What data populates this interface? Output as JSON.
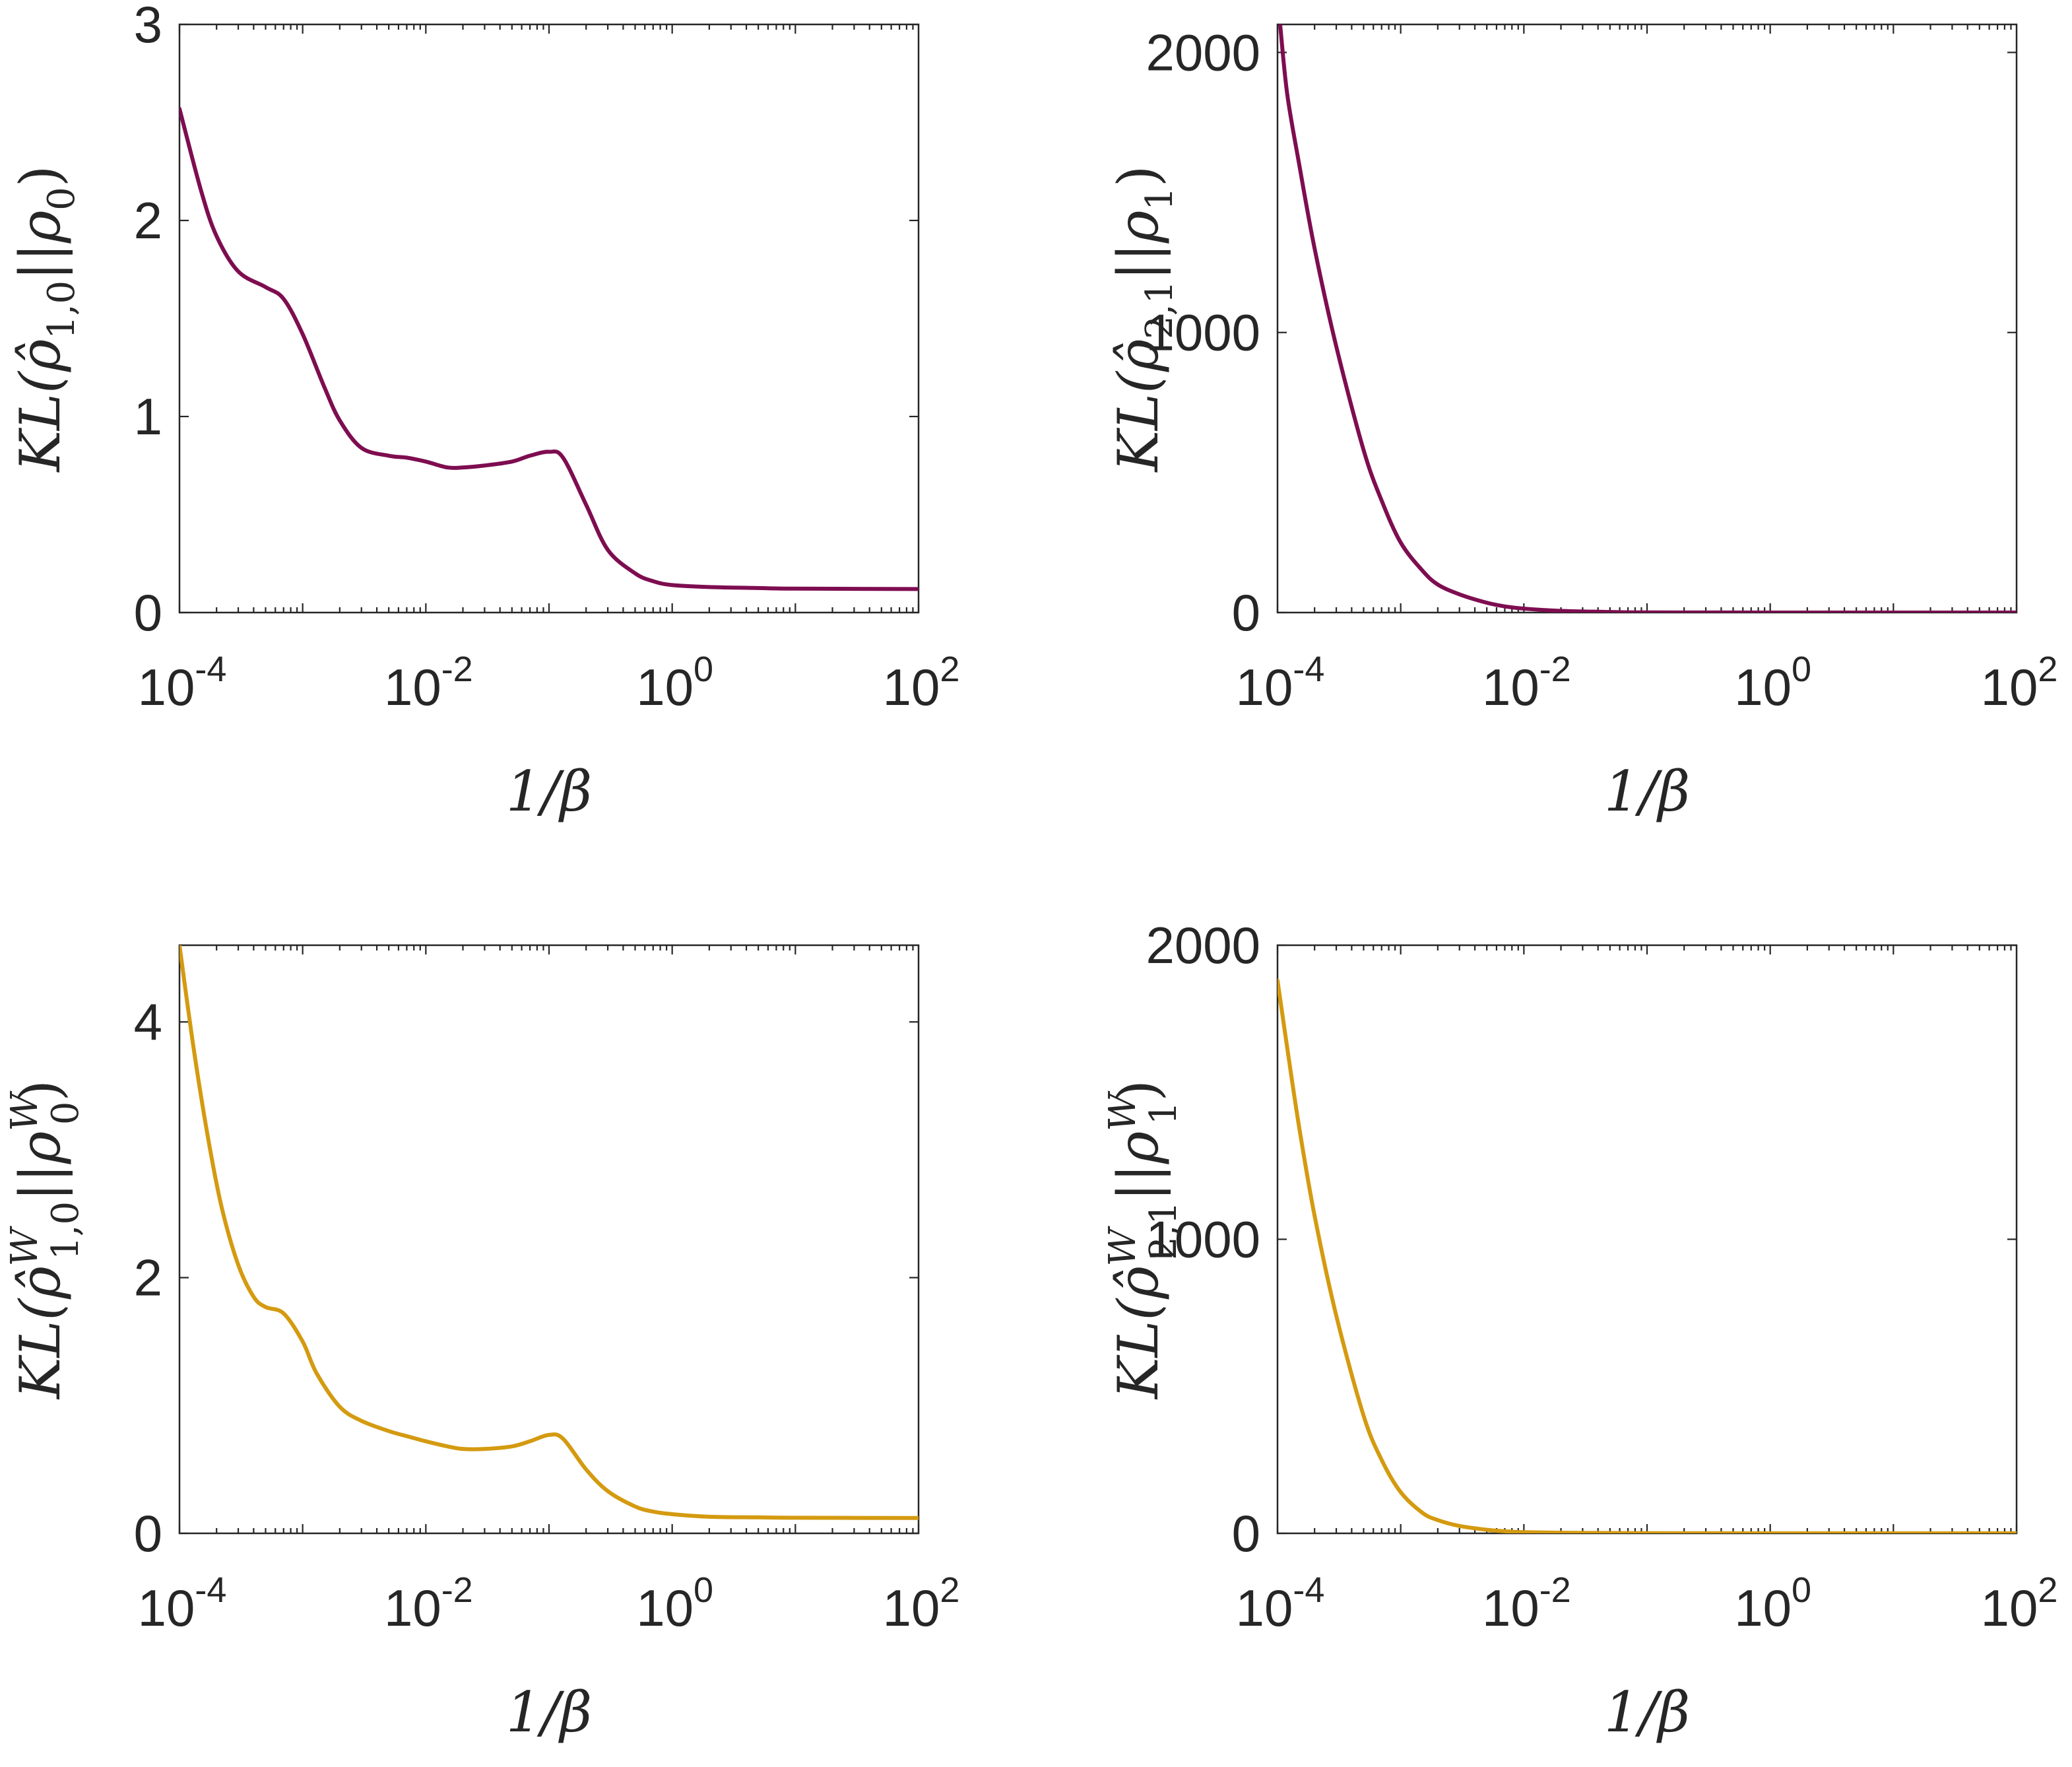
{
  "colors": {
    "wine": "#7e0d50",
    "gold": "#d49a10",
    "axis": "#262626"
  },
  "chart_data": [
    {
      "type": "line",
      "xscale": "log",
      "xlim": [
        0.0001,
        100
      ],
      "ylim": [
        0,
        3
      ],
      "yticks": [
        0,
        1,
        2,
        3
      ],
      "ytick_labels": [
        "0",
        "1",
        "2",
        "3"
      ],
      "xticks": [
        0.0001,
        0.01,
        1,
        100
      ],
      "xtick_labels": [
        {
          "base": "10",
          "exp": "-4"
        },
        {
          "base": "10",
          "exp": "-2"
        },
        {
          "base": "10",
          "exp": "0"
        },
        {
          "base": "10",
          "exp": "2"
        }
      ],
      "xlabel": "1/β",
      "ylabel": {
        "prefix": "KL(",
        "sym": "ρ̂",
        "sub": "1,0",
        "sup": "",
        "mid": "||ρ",
        "sub2": "0",
        "sup2": "",
        "suffix": ")"
      },
      "color": "wine",
      "series": [
        {
          "x": [
            0.0001,
            0.00015,
            0.0002,
            0.0003,
            0.0005,
            0.0007,
            0.001,
            0.0015,
            0.002,
            0.003,
            0.005,
            0.007,
            0.01,
            0.015,
            0.02,
            0.03,
            0.05,
            0.07,
            0.1,
            0.13,
            0.2,
            0.3,
            0.5,
            0.7,
            1,
            2,
            5,
            10,
            100
          ],
          "y": [
            2.57,
            2.15,
            1.92,
            1.74,
            1.66,
            1.6,
            1.42,
            1.15,
            0.98,
            0.84,
            0.8,
            0.79,
            0.77,
            0.74,
            0.74,
            0.75,
            0.77,
            0.8,
            0.82,
            0.79,
            0.55,
            0.32,
            0.2,
            0.16,
            0.14,
            0.13,
            0.125,
            0.122,
            0.12
          ]
        }
      ]
    },
    {
      "type": "line",
      "xscale": "log",
      "xlim": [
        0.0001,
        100
      ],
      "ylim": [
        0,
        2100
      ],
      "yticks": [
        0,
        1000,
        2000
      ],
      "ytick_labels": [
        "0",
        "1000",
        "2000"
      ],
      "xticks": [
        0.0001,
        0.01,
        1,
        100
      ],
      "xtick_labels": [
        {
          "base": "10",
          "exp": "-4"
        },
        {
          "base": "10",
          "exp": "-2"
        },
        {
          "base": "10",
          "exp": "0"
        },
        {
          "base": "10",
          "exp": "2"
        }
      ],
      "xlabel": "1/β",
      "ylabel": {
        "prefix": "KL(",
        "sym": "ρ̂",
        "sub": "2,1",
        "sup": "",
        "mid": "||ρ",
        "sub2": "1",
        "sup2": "",
        "suffix": ")"
      },
      "color": "wine",
      "series": [
        {
          "x": [
            0.000105,
            0.00012,
            0.00015,
            0.0002,
            0.0003,
            0.0005,
            0.0007,
            0.001,
            0.0015,
            0.002,
            0.003,
            0.005,
            0.007,
            0.01,
            0.02,
            0.05,
            0.1,
            1,
            10,
            100
          ],
          "y": [
            2100,
            1850,
            1600,
            1300,
            950,
            580,
            400,
            250,
            150,
            100,
            65,
            35,
            22,
            14,
            6,
            2,
            0.5,
            0.1,
            0,
            0
          ]
        }
      ]
    },
    {
      "type": "line",
      "xscale": "log",
      "xlim": [
        0.0001,
        100
      ],
      "ylim": [
        0,
        4.6
      ],
      "yticks": [
        0,
        2,
        4
      ],
      "ytick_labels": [
        "0",
        "2",
        "4"
      ],
      "xticks": [
        0.0001,
        0.01,
        1,
        100
      ],
      "xtick_labels": [
        {
          "base": "10",
          "exp": "-4"
        },
        {
          "base": "10",
          "exp": "-2"
        },
        {
          "base": "10",
          "exp": "0"
        },
        {
          "base": "10",
          "exp": "2"
        }
      ],
      "xlabel": "1/β",
      "ylabel": {
        "prefix": "KL(",
        "sym": "ρ̂",
        "sub": "1,0",
        "sup": "W",
        "mid": "||ρ",
        "sub2": "0",
        "sup2": "W",
        "suffix": ")"
      },
      "color": "gold",
      "series": [
        {
          "x": [
            0.0001,
            0.00013,
            0.00017,
            0.00022,
            0.0003,
            0.0004,
            0.0005,
            0.0007,
            0.001,
            0.0013,
            0.002,
            0.003,
            0.005,
            0.007,
            0.01,
            0.015,
            0.02,
            0.03,
            0.05,
            0.07,
            0.1,
            0.13,
            0.2,
            0.3,
            0.5,
            0.7,
            1,
            2,
            5,
            10,
            100
          ],
          "y": [
            4.6,
            3.8,
            3.1,
            2.55,
            2.1,
            1.85,
            1.77,
            1.72,
            1.5,
            1.25,
            0.99,
            0.88,
            0.8,
            0.76,
            0.72,
            0.68,
            0.66,
            0.66,
            0.68,
            0.72,
            0.77,
            0.74,
            0.5,
            0.33,
            0.21,
            0.17,
            0.15,
            0.13,
            0.125,
            0.122,
            0.12
          ]
        }
      ]
    },
    {
      "type": "line",
      "xscale": "log",
      "xlim": [
        0.0001,
        100
      ],
      "ylim": [
        0,
        2000
      ],
      "yticks": [
        0,
        1000,
        2000
      ],
      "ytick_labels": [
        "0",
        "1000",
        "2000"
      ],
      "xticks": [
        0.0001,
        0.01,
        1,
        100
      ],
      "xtick_labels": [
        {
          "base": "10",
          "exp": "-4"
        },
        {
          "base": "10",
          "exp": "-2"
        },
        {
          "base": "10",
          "exp": "0"
        },
        {
          "base": "10",
          "exp": "2"
        }
      ],
      "xlabel": "1/β",
      "ylabel": {
        "prefix": "KL(",
        "sym": "ρ̂",
        "sub": "2,1",
        "sup": "W",
        "mid": "||ρ",
        "sub2": "1",
        "sup2": "W",
        "suffix": ")"
      },
      "color": "gold",
      "series": [
        {
          "x": [
            0.0001,
            0.00012,
            0.00015,
            0.0002,
            0.0003,
            0.0005,
            0.0007,
            0.001,
            0.0015,
            0.002,
            0.003,
            0.005,
            0.007,
            0.01,
            0.02,
            0.05,
            0.1,
            1,
            10,
            100
          ],
          "y": [
            1880,
            1650,
            1380,
            1080,
            740,
            400,
            250,
            140,
            70,
            45,
            25,
            12,
            7,
            4,
            2,
            1,
            0.5,
            0.1,
            0,
            0
          ]
        }
      ]
    }
  ]
}
